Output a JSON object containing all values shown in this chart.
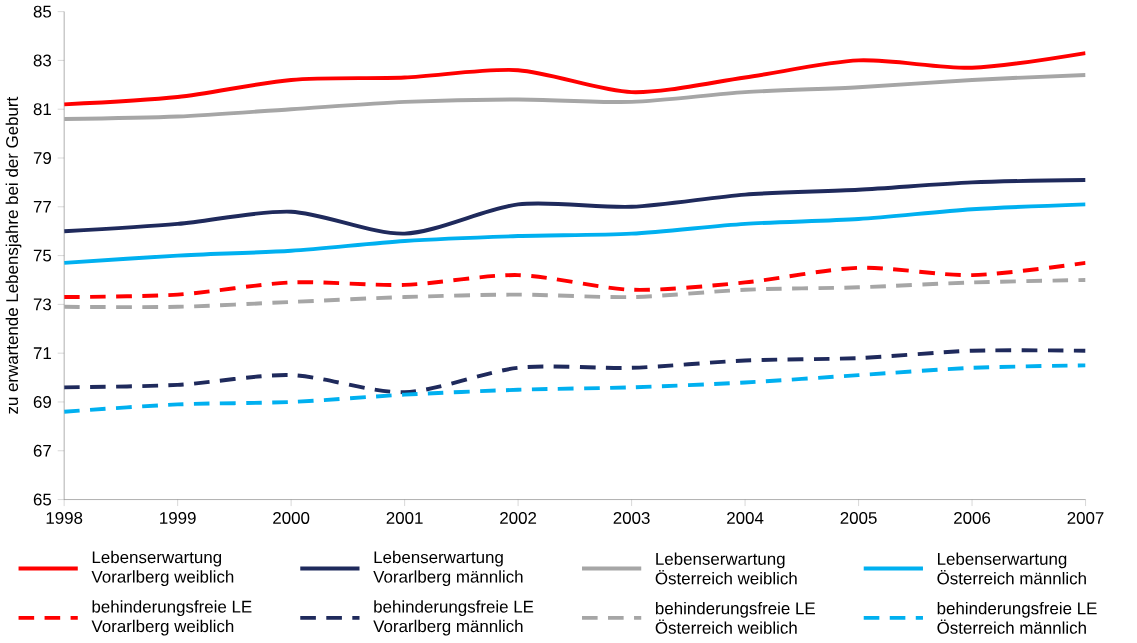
{
  "chart_data": {
    "type": "line",
    "ylabel": "zu erwartende Lebensjahre bei der Geburt",
    "x": [
      1998,
      1999,
      2000,
      2001,
      2002,
      2003,
      2004,
      2005,
      2006,
      2007
    ],
    "xlim": [
      1998,
      2007
    ],
    "xticks": [
      1998,
      1999,
      2000,
      2001,
      2002,
      2003,
      2004,
      2005,
      2006,
      2007
    ],
    "ylim": [
      65,
      85
    ],
    "yticks": [
      65,
      67,
      69,
      71,
      73,
      75,
      77,
      79,
      81,
      83,
      85
    ],
    "grid": false,
    "legend": "bottom",
    "marker": "none",
    "series": [
      {
        "name": "Lebenserwartung Vorarlberg weiblich",
        "color": "#ff0000",
        "line_style": "solid",
        "values": [
          81.2,
          81.5,
          82.2,
          82.3,
          82.6,
          81.7,
          82.3,
          83.0,
          82.7,
          83.3
        ]
      },
      {
        "name": "Lebenserwartung Vorarlberg männlich",
        "color": "#1f2a5c",
        "line_style": "solid",
        "values": [
          76.0,
          76.3,
          76.8,
          75.9,
          77.1,
          77.0,
          77.5,
          77.7,
          78.0,
          78.1
        ]
      },
      {
        "name": "Lebenserwartung Österreich weiblich",
        "color": "#a6a6a6",
        "line_style": "solid",
        "values": [
          80.6,
          80.7,
          81.0,
          81.3,
          81.4,
          81.3,
          81.7,
          81.9,
          82.2,
          82.4
        ]
      },
      {
        "name": "Lebenserwartung Österreich männlich",
        "color": "#00b0f0",
        "line_style": "solid",
        "values": [
          74.7,
          75.0,
          75.2,
          75.6,
          75.8,
          75.9,
          76.3,
          76.5,
          76.9,
          77.1
        ]
      },
      {
        "name": "behinderungsfreie LE Vorarlberg weiblich",
        "color": "#ff0000",
        "line_style": "dashed",
        "values": [
          73.3,
          73.4,
          73.9,
          73.8,
          74.2,
          73.6,
          73.9,
          74.5,
          74.2,
          74.7
        ]
      },
      {
        "name": "behinderungsfreie LE Vorarlberg männlich",
        "color": "#1f2a5c",
        "line_style": "dashed",
        "values": [
          69.6,
          69.7,
          70.1,
          69.4,
          70.4,
          70.4,
          70.7,
          70.8,
          71.1,
          71.1
        ]
      },
      {
        "name": "behinderungsfreie LE Österreich weiblich",
        "color": "#a6a6a6",
        "line_style": "dashed",
        "values": [
          72.9,
          72.9,
          73.1,
          73.3,
          73.4,
          73.3,
          73.6,
          73.7,
          73.9,
          74.0
        ]
      },
      {
        "name": "behinderungsfreie LE Österreich männlich",
        "color": "#00b0f0",
        "line_style": "dashed",
        "values": [
          68.6,
          68.9,
          69.0,
          69.3,
          69.5,
          69.6,
          69.8,
          70.1,
          70.4,
          70.5
        ]
      }
    ]
  }
}
